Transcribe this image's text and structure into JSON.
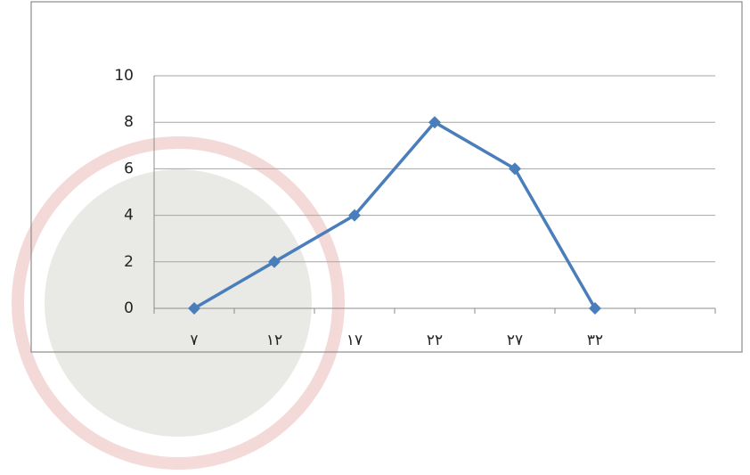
{
  "chart_data": {
    "type": "line",
    "categories": [
      "٧",
      "١٢",
      "١٧",
      "٢٢",
      "٢٧",
      "٣٢",
      null
    ],
    "series": [
      {
        "color": "#4a7ebb",
        "values": [
          0,
          2,
          4,
          8,
          6,
          0,
          null
        ]
      }
    ],
    "ylim": [
      0,
      10
    ],
    "yticks": [
      0,
      2,
      4,
      6,
      8,
      10
    ],
    "grid": true
  }
}
